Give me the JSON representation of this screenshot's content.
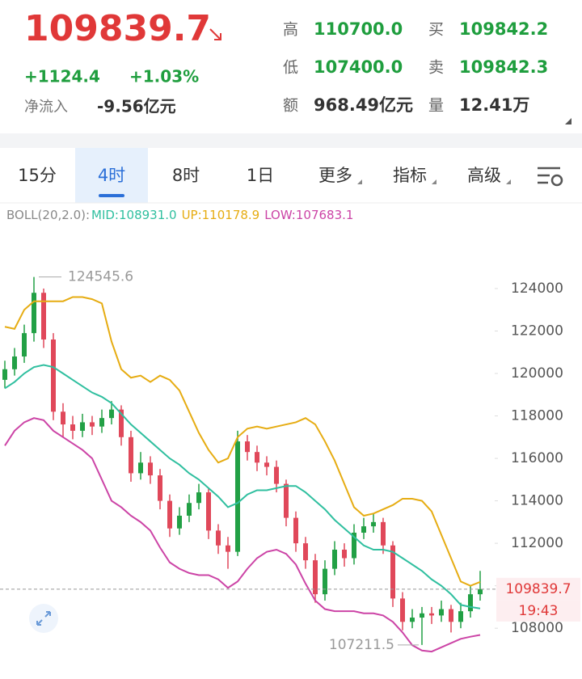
{
  "header": {
    "price": "109839.7",
    "change": "+1124.4",
    "change_pct": "+1.03%",
    "net_inflow_label": "净流入",
    "net_inflow": "-9.56亿元",
    "stats": [
      {
        "label": "高",
        "value": "110700.0",
        "color": "#1f9e3e"
      },
      {
        "label": "买",
        "value": "109842.2",
        "color": "#1f9e3e"
      },
      {
        "label": "低",
        "value": "107400.0",
        "color": "#1f9e3e"
      },
      {
        "label": "卖",
        "value": "109842.3",
        "color": "#1f9e3e"
      },
      {
        "label": "额",
        "value": "968.49亿元",
        "color": "#333333"
      },
      {
        "label": "量",
        "value": "12.41万",
        "color": "#333333"
      }
    ]
  },
  "tabs": {
    "items": [
      "15分",
      "4时",
      "8时",
      "1日",
      "更多",
      "指标",
      "高级"
    ],
    "active": 1
  },
  "chart_data": {
    "type": "candlestick",
    "indicator": "BOLL(20,2.0):",
    "up_color": "#22a045",
    "down_color": "#e0485a",
    "ylim": [
      106750,
      126550
    ],
    "yticks": [
      108000,
      110000,
      112000,
      114000,
      116000,
      118000,
      120000,
      122000,
      124000
    ],
    "open": [
      119700,
      120200,
      120800,
      121900,
      123800,
      121600,
      118200,
      117600,
      117300,
      117700,
      117500,
      117900,
      118300,
      117000,
      115300,
      115800,
      115200,
      114000,
      112700,
      113300,
      113900,
      114400,
      112600,
      111900,
      111600,
      116800,
      116300,
      115800,
      115600,
      114800,
      113200,
      112000,
      111200,
      109600,
      110800,
      111700,
      111300,
      112500,
      112800,
      113000,
      111900,
      109400,
      108300,
      108500,
      108700,
      108600,
      108900,
      108300,
      108800,
      109600
    ],
    "high": [
      120600,
      121200,
      122300,
      124545.6,
      124000,
      121900,
      118600,
      118000,
      118100,
      118000,
      118300,
      118700,
      118500,
      117300,
      116300,
      116100,
      115500,
      114300,
      113700,
      114300,
      114800,
      114600,
      112900,
      112300,
      117300,
      117100,
      116600,
      116100,
      115900,
      115000,
      113500,
      112300,
      111500,
      111200,
      112100,
      112000,
      112900,
      113200,
      113400,
      113200,
      112100,
      109700,
      108900,
      109000,
      109000,
      109300,
      109100,
      109200,
      110000,
      110700
    ],
    "low": [
      119300,
      119900,
      120500,
      121500,
      121200,
      117800,
      117000,
      116900,
      117000,
      117100,
      117200,
      117600,
      116600,
      114900,
      115000,
      114800,
      113600,
      112300,
      112400,
      113000,
      113600,
      112200,
      111500,
      110800,
      111400,
      115900,
      115400,
      115200,
      114400,
      112800,
      111600,
      110800,
      109200,
      109300,
      110500,
      110900,
      111000,
      112200,
      112500,
      111500,
      109000,
      107900,
      108000,
      107211.5,
      108200,
      108300,
      107800,
      108000,
      108500,
      109300
    ],
    "close": [
      120200,
      120800,
      121900,
      123800,
      121600,
      118200,
      117600,
      117300,
      117700,
      117500,
      117900,
      118300,
      117000,
      115300,
      115800,
      115200,
      114000,
      112700,
      113300,
      113900,
      114400,
      112600,
      111900,
      111600,
      116800,
      116300,
      115800,
      115600,
      114800,
      113200,
      112000,
      111200,
      109600,
      110800,
      111700,
      111300,
      112500,
      112800,
      113000,
      111900,
      109400,
      108300,
      108500,
      108700,
      108600,
      108900,
      108300,
      108800,
      109600,
      109839.7
    ],
    "series": [
      {
        "label": "MID:108931.0",
        "color": "#2fbf9f",
        "values": [
          119300,
          119600,
          120000,
          120300,
          120400,
          120300,
          120000,
          119700,
          119400,
          119100,
          118900,
          118600,
          118100,
          117600,
          117200,
          116800,
          116400,
          116000,
          115700,
          115300,
          115000,
          114600,
          114200,
          113700,
          113900,
          114300,
          114500,
          114500,
          114600,
          114700,
          114700,
          114400,
          114000,
          113600,
          113100,
          112700,
          112300,
          111900,
          111700,
          111700,
          111600,
          111300,
          111000,
          110700,
          110300,
          110000,
          109600,
          109100,
          109000,
          108931.0
        ]
      },
      {
        "label": "UP:110178.9",
        "color": "#e6ac12",
        "values": [
          122200,
          122100,
          123000,
          123400,
          123400,
          123400,
          123400,
          123600,
          123600,
          123500,
          123300,
          121500,
          120200,
          119800,
          119900,
          119600,
          119900,
          119700,
          119200,
          118200,
          117200,
          116400,
          115800,
          116000,
          117000,
          117400,
          117500,
          117400,
          117500,
          117600,
          117700,
          117900,
          117600,
          116800,
          115900,
          114800,
          113700,
          113300,
          113400,
          113600,
          113800,
          114100,
          114100,
          114000,
          113500,
          112400,
          111300,
          110200,
          110000,
          110178.9
        ]
      },
      {
        "label": "LOW:107683.1",
        "color": "#cc44a6",
        "values": [
          116600,
          117300,
          117700,
          117900,
          117800,
          117300,
          117000,
          116700,
          116400,
          116000,
          115000,
          114000,
          113700,
          113300,
          113000,
          112600,
          111800,
          111100,
          110800,
          110600,
          110500,
          110500,
          110300,
          109900,
          110200,
          110800,
          111300,
          111600,
          111700,
          111500,
          111000,
          110100,
          109300,
          108900,
          108800,
          108800,
          108800,
          108700,
          108700,
          108600,
          108300,
          107800,
          107200,
          106950,
          106900,
          107100,
          107300,
          107500,
          107600,
          107683.1
        ]
      }
    ],
    "annotations": {
      "max": "124545.6",
      "min": "107211.5"
    },
    "last_price": {
      "label": "109839.7",
      "time": "19:43"
    }
  }
}
